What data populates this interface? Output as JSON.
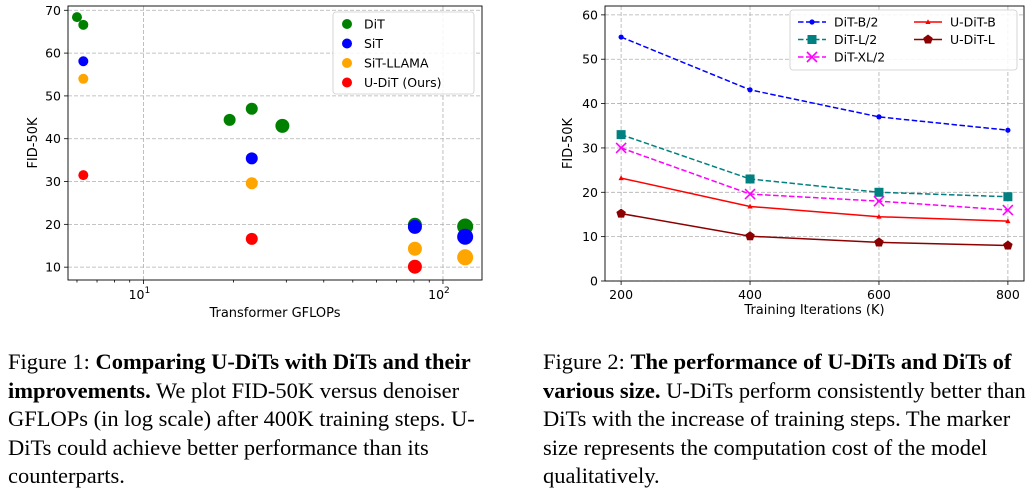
{
  "chart_data": [
    {
      "type": "scatter",
      "title": "",
      "xlabel": "Transformer GFLOPs",
      "ylabel": "FID-50K",
      "xscale": "log",
      "xlim": [
        5.6,
        135
      ],
      "ylim": [
        7,
        71
      ],
      "x_ticks": [
        {
          "v": 10,
          "base": "10",
          "exp": "1"
        },
        {
          "v": 100,
          "base": "10",
          "exp": "2"
        }
      ],
      "y_ticks": [
        10,
        20,
        30,
        40,
        50,
        60,
        70
      ],
      "grid": true,
      "legend_position": "top-right",
      "series": [
        {
          "name": "DiT",
          "color": "#008000",
          "points": [
            [
              6,
              68.4
            ],
            [
              6.3,
              66.6
            ],
            [
              19.4,
              44.4
            ],
            [
              23,
              47
            ],
            [
              29.1,
              43
            ],
            [
              80.6,
              19.9
            ],
            [
              118.6,
              19.5
            ]
          ],
          "sizes": [
            5,
            5,
            6,
            6,
            7,
            7,
            8
          ]
        },
        {
          "name": "SiT",
          "color": "#0000ff",
          "points": [
            [
              6.3,
              58.1
            ],
            [
              23,
              35.4
            ],
            [
              80.6,
              19.4
            ],
            [
              118.6,
              17.1
            ]
          ],
          "sizes": [
            5,
            6,
            7,
            8
          ]
        },
        {
          "name": "SiT-LLAMA",
          "color": "#ffa500",
          "points": [
            [
              6.3,
              54
            ],
            [
              23,
              29.6
            ],
            [
              80.6,
              14.3
            ],
            [
              118.6,
              12.3
            ]
          ],
          "sizes": [
            5,
            6,
            7,
            8
          ]
        },
        {
          "name": "U-DiT (Ours)",
          "color": "#ff0000",
          "points": [
            [
              6.3,
              31.5
            ],
            [
              23,
              16.6
            ],
            [
              80.6,
              10.1
            ]
          ],
          "sizes": [
            5,
            6,
            7
          ]
        }
      ]
    },
    {
      "type": "line",
      "title": "",
      "xlabel": "Training Iterations (K)",
      "ylabel": "FID-50K",
      "x": [
        200,
        400,
        600,
        800
      ],
      "xlim": [
        175,
        825
      ],
      "ylim": [
        0,
        62
      ],
      "x_ticks": [
        200,
        400,
        600,
        800
      ],
      "y_ticks": [
        0,
        10,
        20,
        30,
        40,
        50,
        60
      ],
      "grid": true,
      "legend_position": "top-right",
      "legend_columns": 2,
      "series": [
        {
          "name": "DiT-B/2",
          "color": "#0000ff",
          "dash": true,
          "marker": "dot",
          "values": [
            55,
            43.1,
            37,
            34
          ]
        },
        {
          "name": "DiT-L/2",
          "color": "#008080",
          "dash": true,
          "marker": "square",
          "values": [
            33,
            23,
            20,
            19
          ]
        },
        {
          "name": "DiT-XL/2",
          "color": "#ff00ff",
          "dash": true,
          "marker": "x",
          "values": [
            30,
            19.6,
            18,
            16
          ]
        },
        {
          "name": "U-DiT-B",
          "color": "#ff0000",
          "dash": false,
          "marker": "tri",
          "values": [
            23.2,
            16.8,
            14.5,
            13.5
          ]
        },
        {
          "name": "U-DiT-L",
          "color": "#8b0000",
          "dash": false,
          "marker": "pentagon",
          "values": [
            15.2,
            10.1,
            8.7,
            8
          ]
        }
      ]
    }
  ],
  "captions": {
    "fig1": {
      "label": "Figure 1:",
      "bold": "Comparing U-DiTs with DiTs and their improvements.",
      "text": "We plot FID-50K versus denoiser GFLOPs (in log scale) after 400K training steps. U-DiTs could achieve better performance than its counterparts."
    },
    "fig2": {
      "label": "Figure 2:",
      "bold": "The performance of U-DiTs and DiTs of various size.",
      "text": "U-DiTs perform consistently better than DiTs with the increase of training steps. The marker size represents the computation cost of the model qualitatively."
    }
  }
}
